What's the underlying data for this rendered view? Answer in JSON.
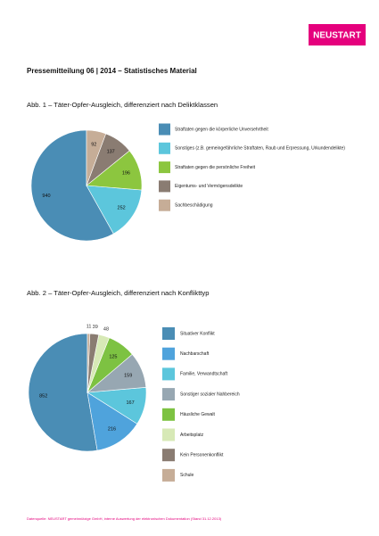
{
  "logo": "NEUSTART",
  "header": "Pressemitteilung 06 | 2014 –  Statistisches Material",
  "chart_data": [
    {
      "type": "pie",
      "title": "Abb. 1 – Täter-Opfer-Ausgleich, differenziert nach Deliktklassen",
      "categories": [
        "Straftaten gegen die körperliche Unversehrtheit",
        "Sonstiges (z.B. gemeingefährliche Straftaten, Raub und Erpressung, Urkundendelikte)",
        "Straftaten gegen die persönliche Freiheit",
        "Eigentums- und Vermögensdelikte",
        "Sachbeschädigung"
      ],
      "values": [
        940,
        252,
        196,
        137,
        92
      ],
      "colors": [
        "#4a8db5",
        "#5cc6dc",
        "#8cc63f",
        "#8a7c72",
        "#c6ad97"
      ]
    },
    {
      "type": "pie",
      "title": "Abb. 2 – Täter-Opfer-Ausgleich, differenziert nach Konflikttyp",
      "categories": [
        "Situativer Konflikt",
        "Nachbarschaft",
        "Familie, Verwandtschaft",
        "Sonstiger sozialer Nahbereich",
        "Häusliche Gewalt",
        "Arbeitsplatz",
        "Kein Personenkonflikt",
        "Schule"
      ],
      "values": [
        852,
        216,
        167,
        159,
        125,
        48,
        39,
        11
      ],
      "colors": [
        "#4a8db5",
        "#4fa3dc",
        "#5cc6dc",
        "#97a7b2",
        "#7dc242",
        "#d7e9b6",
        "#8a7c72",
        "#c6ad97"
      ]
    }
  ],
  "footer": "Datenquelle: NEUSTART gemeinnützige GmbH, interne Auswertung der elektronischen Dokumentation (Stand 31.12.2013)"
}
